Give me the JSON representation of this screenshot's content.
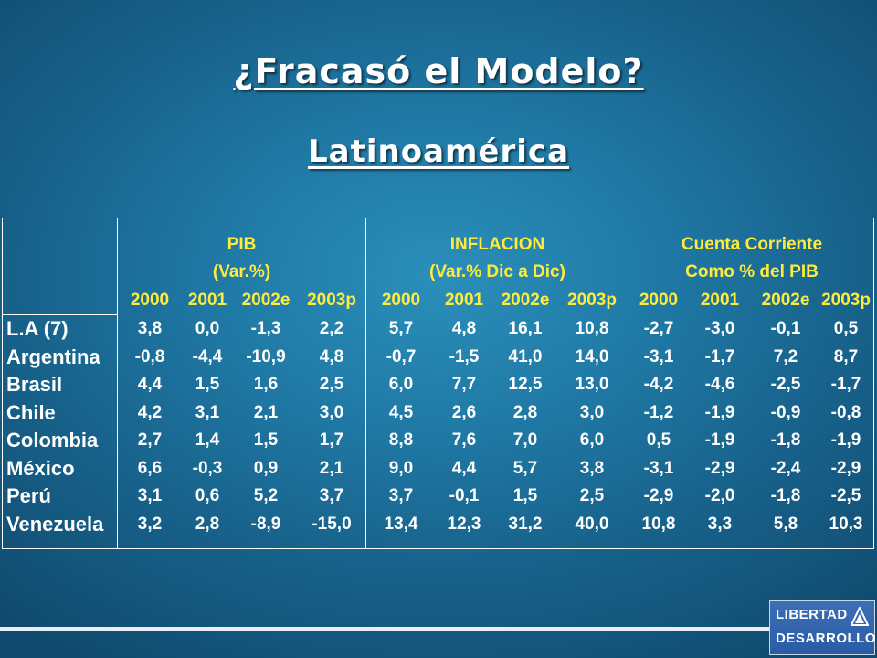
{
  "title": "¿Fracasó el Modelo?",
  "subtitle": "Latinoamérica",
  "groups": [
    {
      "line1": "PIB",
      "line2": "(Var.%)"
    },
    {
      "line1": "INFLACION",
      "line2": "(Var.% Dic a Dic)"
    },
    {
      "line1": "Cuenta Corriente",
      "line2": "Como % del PIB"
    }
  ],
  "years": [
    "2000",
    "2001",
    "2002e",
    "2003p"
  ],
  "rows": [
    {
      "country": "L.A (7)",
      "values": [
        "3,8",
        "0,0",
        "-1,3",
        "2,2",
        "5,7",
        "4,8",
        "16,1",
        "10,8",
        "-2,7",
        "-3,0",
        "-0,1",
        "0,5"
      ]
    },
    {
      "country": "Argentina",
      "values": [
        "-0,8",
        "-4,4",
        "-10,9",
        "4,8",
        "-0,7",
        "-1,5",
        "41,0",
        "14,0",
        "-3,1",
        "-1,7",
        "7,2",
        "8,7"
      ]
    },
    {
      "country": "Brasil",
      "values": [
        "4,4",
        "1,5",
        "1,6",
        "2,5",
        "6,0",
        "7,7",
        "12,5",
        "13,0",
        "-4,2",
        "-4,6",
        "-2,5",
        "-1,7"
      ]
    },
    {
      "country": "Chile",
      "values": [
        "4,2",
        "3,1",
        "2,1",
        "3,0",
        "4,5",
        "2,6",
        "2,8",
        "3,0",
        "-1,2",
        "-1,9",
        "-0,9",
        "-0,8"
      ]
    },
    {
      "country": "Colombia",
      "values": [
        "2,7",
        "1,4",
        "1,5",
        "1,7",
        "8,8",
        "7,6",
        "7,0",
        "6,0",
        "0,5",
        "-1,9",
        "-1,8",
        "-1,9"
      ]
    },
    {
      "country": "México",
      "values": [
        "6,6",
        "-0,3",
        "0,9",
        "2,1",
        "9,0",
        "4,4",
        "5,7",
        "3,8",
        "-3,1",
        "-2,9",
        "-2,4",
        "-2,9"
      ]
    },
    {
      "country": "Perú",
      "values": [
        "3,1",
        "0,6",
        "5,2",
        "3,7",
        "3,7",
        "-0,1",
        "1,5",
        "2,5",
        "-2,9",
        "-2,0",
        "-1,8",
        "-2,5"
      ]
    },
    {
      "country": "Venezuela",
      "values": [
        "3,2",
        "2,8",
        "-8,9",
        "-15,0",
        "13,4",
        "12,3",
        "31,2",
        "40,0",
        "10,8",
        "3,3",
        "5,8",
        "10,3"
      ]
    }
  ],
  "logo": {
    "line1": "LIBERTAD",
    "line2": "DESARROLLO"
  },
  "colors": {
    "header_text": "#ffeb3b",
    "body_text": "#ffffff",
    "background": "#1f78a4"
  }
}
